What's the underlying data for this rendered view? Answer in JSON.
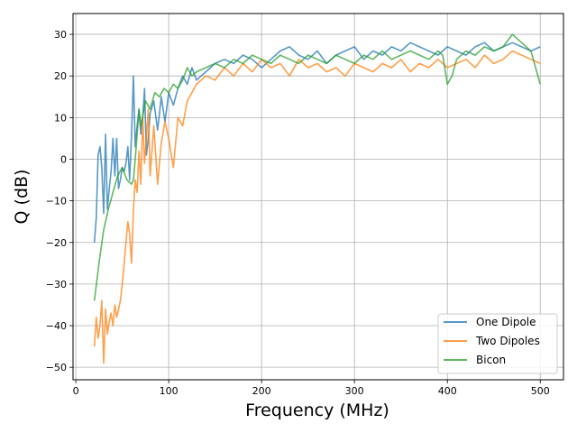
{
  "chart_data": {
    "type": "line",
    "xlabel": "Frequency (MHz)",
    "ylabel": "Q (dB)",
    "xlim": [
      -3,
      525
    ],
    "ylim": [
      -53,
      35
    ],
    "xticks": [
      0,
      100,
      200,
      300,
      400,
      500
    ],
    "yticks": [
      -50,
      -40,
      -30,
      -20,
      -10,
      0,
      10,
      20,
      30
    ],
    "grid": true,
    "legend_position": "lower-right",
    "series": [
      {
        "name": "One Dipole",
        "color": "#1f77b4",
        "x": [
          20,
          22,
          24,
          26,
          28,
          30,
          32,
          34,
          36,
          38,
          40,
          42,
          44,
          46,
          48,
          50,
          52,
          54,
          56,
          58,
          60,
          62,
          64,
          66,
          68,
          70,
          72,
          74,
          76,
          78,
          80,
          84,
          88,
          92,
          96,
          100,
          105,
          110,
          115,
          120,
          125,
          130,
          140,
          150,
          160,
          170,
          180,
          190,
          200,
          210,
          220,
          230,
          240,
          250,
          260,
          270,
          280,
          290,
          300,
          310,
          320,
          330,
          340,
          350,
          360,
          370,
          380,
          390,
          400,
          410,
          420,
          430,
          440,
          450,
          460,
          470,
          480,
          490,
          500
        ],
        "y": [
          -20,
          -14,
          1,
          3,
          -2,
          -13,
          6,
          -12,
          -7,
          -3,
          5,
          -4,
          5,
          -7,
          -5,
          -2,
          -3,
          -1,
          3,
          -5,
          6,
          20,
          3,
          8,
          12,
          6,
          10,
          17,
          1,
          5,
          11,
          14,
          7,
          15,
          9,
          16,
          13,
          17,
          20,
          18,
          22,
          19,
          21,
          23,
          24,
          23,
          25,
          24,
          22,
          24,
          26,
          27,
          25,
          24,
          26,
          23,
          25,
          26,
          27,
          24,
          26,
          25,
          27,
          26,
          28,
          27,
          26,
          25,
          27,
          26,
          25,
          27,
          28,
          26,
          27,
          28,
          27,
          26,
          27
        ]
      },
      {
        "name": "Two Dipoles",
        "color": "#ff7f0e",
        "x": [
          20,
          22,
          24,
          26,
          28,
          30,
          32,
          34,
          36,
          38,
          40,
          42,
          44,
          46,
          48,
          50,
          52,
          54,
          56,
          58,
          60,
          62,
          64,
          66,
          68,
          70,
          72,
          74,
          76,
          78,
          80,
          84,
          88,
          92,
          96,
          100,
          105,
          110,
          115,
          120,
          125,
          130,
          140,
          150,
          160,
          170,
          180,
          190,
          200,
          210,
          220,
          230,
          240,
          250,
          260,
          270,
          280,
          290,
          300,
          310,
          320,
          330,
          340,
          350,
          360,
          370,
          380,
          390,
          400,
          410,
          420,
          430,
          440,
          450,
          460,
          470,
          480,
          490,
          500
        ],
        "y": [
          -45,
          -38,
          -43,
          -40,
          -34,
          -49,
          -36,
          -42,
          -39,
          -37,
          -40,
          -35,
          -38,
          -36,
          -34,
          -30,
          -25,
          -20,
          -15,
          -18,
          -25,
          -12,
          -5,
          -8,
          2,
          -6,
          10,
          -1,
          5,
          12,
          -4,
          8,
          -6,
          4,
          9,
          5,
          -2,
          10,
          8,
          14,
          16,
          18,
          20,
          19,
          22,
          20,
          23,
          21,
          24,
          22,
          23,
          20,
          24,
          22,
          23,
          21,
          22,
          20,
          23,
          22,
          21,
          23,
          22,
          24,
          21,
          23,
          22,
          24,
          22,
          23,
          24,
          22,
          25,
          23,
          24,
          26,
          25,
          24,
          23
        ]
      },
      {
        "name": "Bicon",
        "color": "#2ca02c",
        "x": [
          20,
          25,
          30,
          35,
          40,
          45,
          50,
          55,
          60,
          62,
          64,
          66,
          68,
          70,
          75,
          80,
          85,
          90,
          95,
          100,
          105,
          110,
          115,
          120,
          125,
          130,
          140,
          150,
          160,
          170,
          180,
          190,
          200,
          210,
          220,
          230,
          240,
          250,
          260,
          270,
          280,
          290,
          300,
          310,
          320,
          330,
          340,
          350,
          360,
          370,
          380,
          390,
          395,
          400,
          405,
          410,
          420,
          430,
          440,
          450,
          460,
          470,
          480,
          490,
          500
        ],
        "y": [
          -34,
          -25,
          -17,
          -12,
          -8,
          -4,
          -2,
          -5,
          -6,
          -5,
          0,
          6,
          12,
          8,
          14,
          12,
          16,
          15,
          17,
          16,
          18,
          17,
          19,
          22,
          20,
          21,
          22,
          23,
          22,
          24,
          23,
          25,
          24,
          23,
          25,
          24,
          23,
          25,
          24,
          23,
          25,
          24,
          23,
          25,
          24,
          26,
          24,
          25,
          26,
          25,
          24,
          26,
          25,
          18,
          20,
          24,
          26,
          25,
          27,
          26,
          27,
          30,
          28,
          26,
          18
        ]
      }
    ]
  }
}
